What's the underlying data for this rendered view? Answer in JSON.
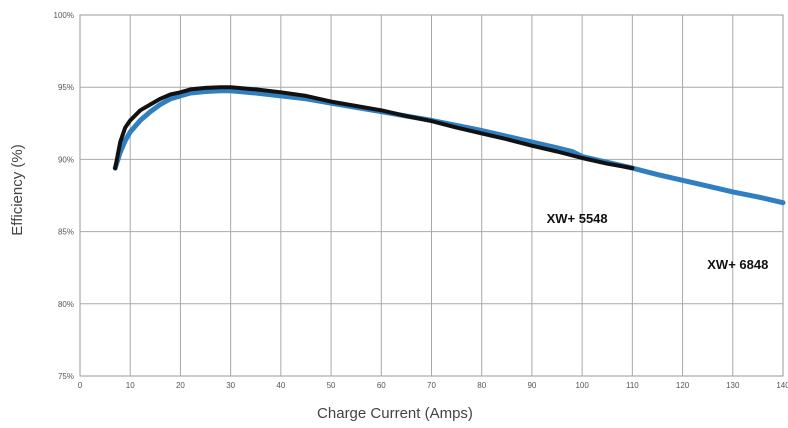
{
  "chart_data": {
    "type": "line",
    "title": "",
    "xlabel": "Charge Current (Amps)",
    "ylabel": "Efficiency (%)",
    "xlim": [
      0,
      140
    ],
    "ylim": [
      75,
      100
    ],
    "x_ticks": [
      0,
      10,
      20,
      30,
      40,
      50,
      60,
      70,
      80,
      90,
      100,
      110,
      120,
      130,
      140
    ],
    "y_ticks": [
      75,
      80,
      85,
      90,
      95,
      100
    ],
    "y_tick_labels": [
      "75%",
      "80%",
      "85%",
      "90%",
      "95%",
      "100%"
    ],
    "grid": true,
    "legend": "none",
    "series": [
      {
        "name": "XW+ 6848",
        "color": "#2f7fc1",
        "x": [
          7,
          8,
          9,
          10,
          12,
          14,
          16,
          18,
          20,
          22,
          25,
          28,
          30,
          35,
          40,
          45,
          50,
          55,
          60,
          65,
          70,
          75,
          80,
          85,
          90,
          95,
          98,
          100,
          105,
          110,
          115,
          120,
          125,
          130,
          135,
          140
        ],
        "y": [
          89.4,
          90.5,
          91.3,
          91.9,
          92.7,
          93.3,
          93.8,
          94.2,
          94.4,
          94.6,
          94.7,
          94.75,
          94.75,
          94.6,
          94.4,
          94.2,
          93.9,
          93.6,
          93.3,
          93.0,
          92.7,
          92.35,
          92.0,
          91.6,
          91.2,
          90.8,
          90.55,
          90.2,
          89.8,
          89.4,
          88.95,
          88.55,
          88.15,
          87.75,
          87.4,
          87.0
        ]
      },
      {
        "name": "XW+ 5548",
        "color": "#111111",
        "x": [
          7,
          8,
          9,
          10,
          12,
          14,
          16,
          18,
          20,
          22,
          25,
          28,
          30,
          35,
          40,
          45,
          50,
          55,
          60,
          65,
          70,
          75,
          80,
          85,
          90,
          95,
          100,
          105,
          110
        ],
        "y": [
          89.4,
          91.2,
          92.2,
          92.7,
          93.4,
          93.8,
          94.2,
          94.5,
          94.65,
          94.85,
          94.95,
          95.0,
          95.0,
          94.85,
          94.65,
          94.4,
          94.0,
          93.7,
          93.4,
          93.0,
          92.65,
          92.2,
          91.8,
          91.4,
          90.95,
          90.55,
          90.1,
          89.7,
          89.4
        ]
      }
    ],
    "annotations": [
      {
        "text": "XW+ 5548",
        "x": 99,
        "y": 85.6
      },
      {
        "text": "XW+ 6848",
        "x": 131,
        "y": 82.4
      }
    ]
  }
}
